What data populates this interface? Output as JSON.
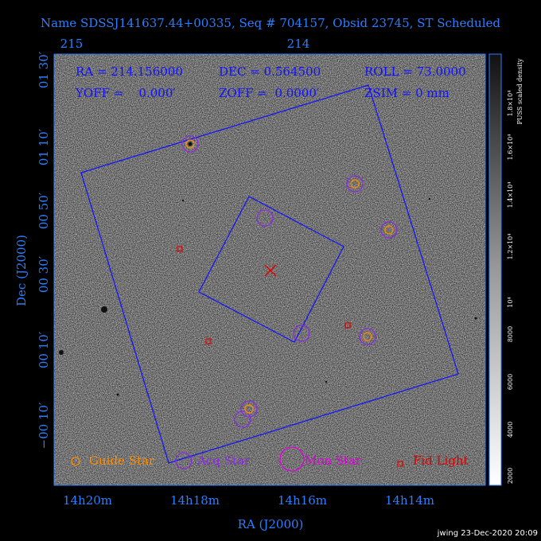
{
  "title": "Name SDSSJ141637.44+00335, Seq # 704157, Obsid 23745, ST Scheduled",
  "top_axis": {
    "ticks": [
      "215",
      "214"
    ]
  },
  "x_axis": {
    "label": "RA (J2000)",
    "ticks": [
      "14h20m",
      "14h18m",
      "14h16m",
      "14h14m"
    ]
  },
  "y_axis": {
    "label": "Dec (J2000)",
    "ticks": [
      "01 30′",
      "01 10′",
      "00 50′",
      "00 30′",
      "00 10′",
      "−00 10′"
    ]
  },
  "info": [
    "RA = 214.156000",
    "DEC = 0.564500",
    "ROLL = 73.0000",
    "YOFF =    0.000′",
    "ZOFF =  0.0000′",
    "ZSIM = 0 mm"
  ],
  "legend": [
    "Guide Star",
    "Acq Star",
    "Mon Star",
    "Fid Light"
  ],
  "colorbar": {
    "label": "PUSS scaled density",
    "ticks": [
      "2000",
      "4000",
      "6000",
      "8000",
      "10⁴",
      "1.2×10⁴",
      "1.4×10⁴",
      "1.6×10⁴",
      "1.8×10⁴"
    ]
  },
  "footer": "jwing 23-Dec-2020 20:09"
}
